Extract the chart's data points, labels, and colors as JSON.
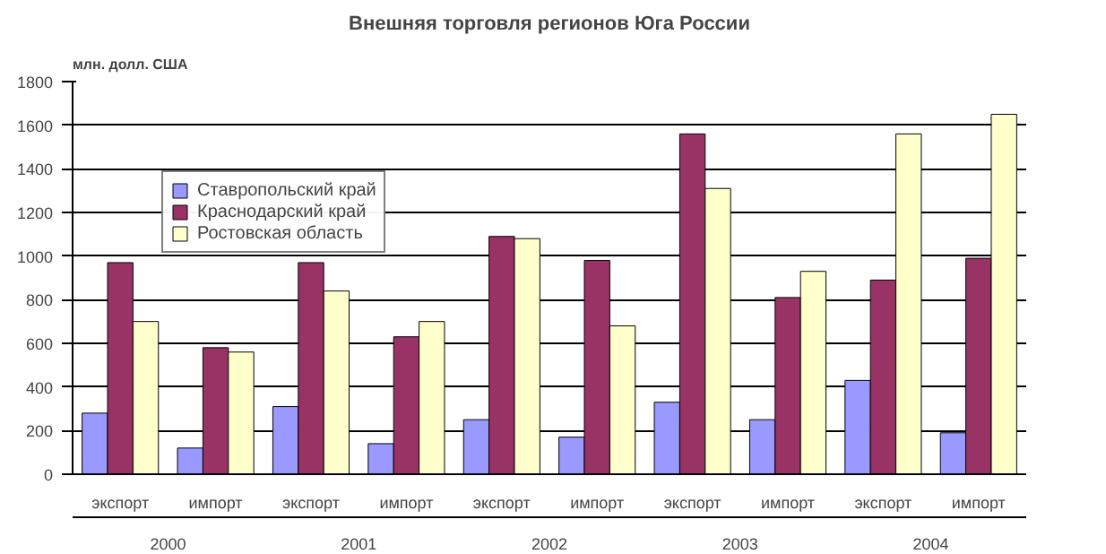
{
  "chart_data": {
    "type": "bar",
    "title": "Внешняя торговля регионов Юга России",
    "ylabel": "млн. долл. США",
    "categories": [
      "экспорт",
      "импорт",
      "экспорт",
      "импорт",
      "экспорт",
      "импорт",
      "экспорт",
      "импорт",
      "экспорт",
      "импорт"
    ],
    "annotations": [
      "2000",
      "2001",
      "2002",
      "2003",
      "2004"
    ],
    "series": [
      {
        "name": "Ставропольский край",
        "color": "#9999ff",
        "values": [
          280,
          120,
          310,
          140,
          250,
          170,
          330,
          250,
          430,
          190
        ]
      },
      {
        "name": "Краснодарский край",
        "color": "#993366",
        "values": [
          970,
          580,
          970,
          630,
          1090,
          980,
          1560,
          810,
          890,
          990
        ]
      },
      {
        "name": "Ростовская область",
        "color": "#ffffcc",
        "values": [
          700,
          560,
          840,
          700,
          1080,
          680,
          1310,
          930,
          1560,
          1650
        ]
      }
    ],
    "ylim": [
      0,
      1800
    ],
    "yticks": [
      0,
      200,
      400,
      600,
      800,
      1000,
      1200,
      1400,
      1600,
      1800
    ],
    "grid": "y",
    "legend": "top left"
  }
}
